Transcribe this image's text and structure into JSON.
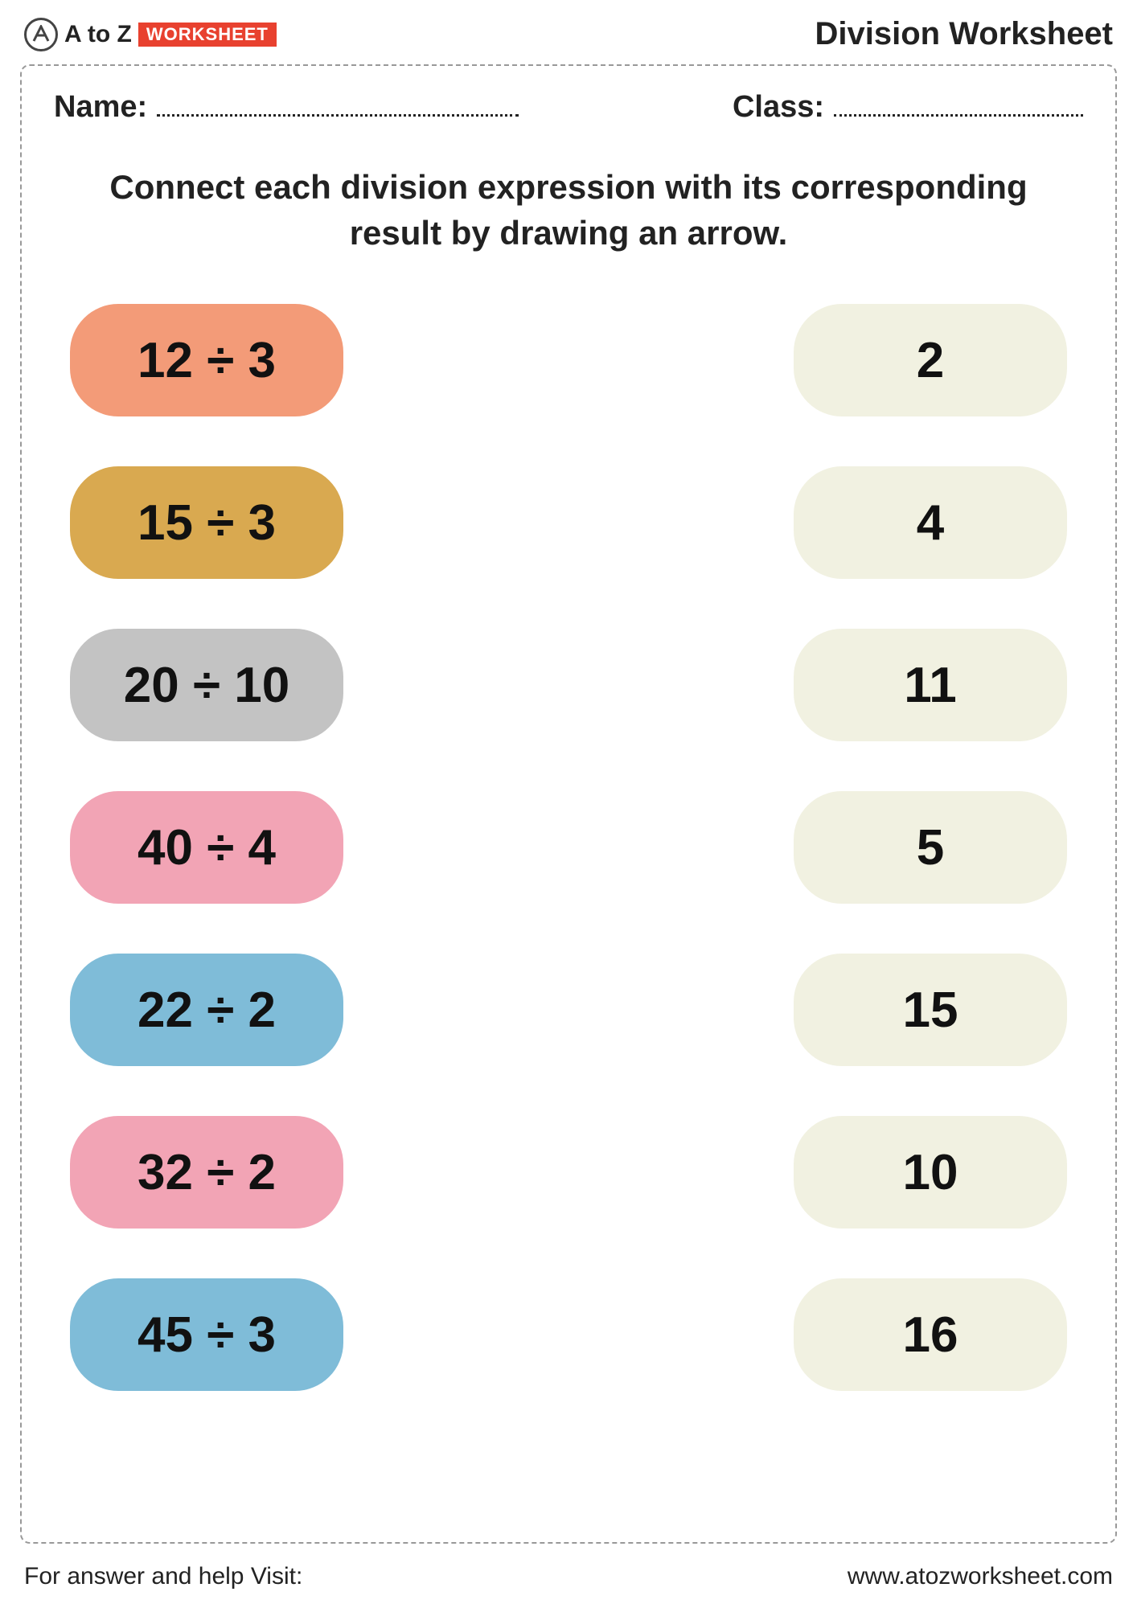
{
  "logo": {
    "a2z": "A to Z",
    "badge": "WORKSHEET"
  },
  "page_title": "Division Worksheet",
  "fields": {
    "name_label": "Name:",
    "class_label": "Class:"
  },
  "instruction": "Connect each division expression with its corresponding result by drawing an arrow.",
  "expressions": [
    {
      "text": "12 ÷ 3",
      "color": "#f39b78"
    },
    {
      "text": "15 ÷ 3",
      "color": "#d9a950"
    },
    {
      "text": "20 ÷ 10",
      "color": "#c3c3c3"
    },
    {
      "text": "40 ÷ 4",
      "color": "#f2a4b5"
    },
    {
      "text": "22 ÷ 2",
      "color": "#7fbcd8"
    },
    {
      "text": "32 ÷ 2",
      "color": "#f2a4b5"
    },
    {
      "text": "45 ÷ 3",
      "color": "#7fbcd8"
    }
  ],
  "results": [
    {
      "text": "2"
    },
    {
      "text": "4"
    },
    {
      "text": "11"
    },
    {
      "text": "5"
    },
    {
      "text": "15"
    },
    {
      "text": "10"
    },
    {
      "text": "16"
    }
  ],
  "result_color": "#f1f1e1",
  "footer": {
    "left": "For answer and help Visit:",
    "right": "www.atozworksheet.com"
  }
}
